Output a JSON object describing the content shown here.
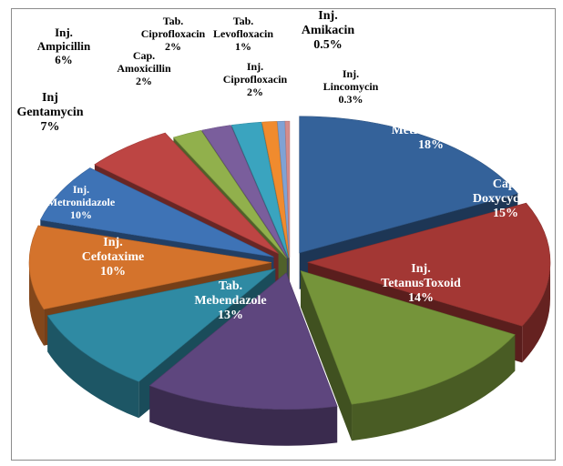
{
  "chart_data": {
    "type": "pie",
    "style": "3d-exploded",
    "slices": [
      {
        "label": "Tab. Metronidazole",
        "value": 18,
        "value_label": "18%",
        "color": "#34629a"
      },
      {
        "label": "Cap. Doxycycline",
        "value": 15,
        "value_label": "15%",
        "color": "#a33734"
      },
      {
        "label": "Inj. TetanusToxoid",
        "value": 14,
        "value_label": "14%",
        "color": "#75943a"
      },
      {
        "label": "Tab. Mebendazole",
        "value": 13,
        "value_label": "13%",
        "color": "#5e467e"
      },
      {
        "label": "Inj. Cefotaxime",
        "value": 10,
        "value_label": "10%",
        "color": "#2f8aa3"
      },
      {
        "label": "Inj. Metronidazole",
        "value": 10,
        "value_label": "10%",
        "color": "#d4732c"
      },
      {
        "label": "Inj Gentamycin",
        "value": 7,
        "value_label": "7%",
        "color": "#3e73b6"
      },
      {
        "label": "Inj. Ampicillin",
        "value": 6,
        "value_label": "6%",
        "color": "#bd4543"
      },
      {
        "label": "Cap. Amoxicillin",
        "value": 2,
        "value_label": "2%",
        "color": "#91b04c"
      },
      {
        "label": "Tab. Ciprofloxacin",
        "value": 2,
        "value_label": "2%",
        "color": "#7a5e9c"
      },
      {
        "label": "Inj. Ciprofloxacin",
        "value": 2,
        "value_label": "2%",
        "color": "#3aa4bf"
      },
      {
        "label": "Tab. Levofloxacin",
        "value": 1,
        "value_label": "1%",
        "color": "#f08b2e"
      },
      {
        "label": "Inj. Amikacin",
        "value": 0.5,
        "value_label": "0.5%",
        "color": "#7fa2d4"
      },
      {
        "label": "Inj. Lincomycin",
        "value": 0.3,
        "value_label": "0.3%",
        "color": "#d58c8b"
      }
    ]
  }
}
